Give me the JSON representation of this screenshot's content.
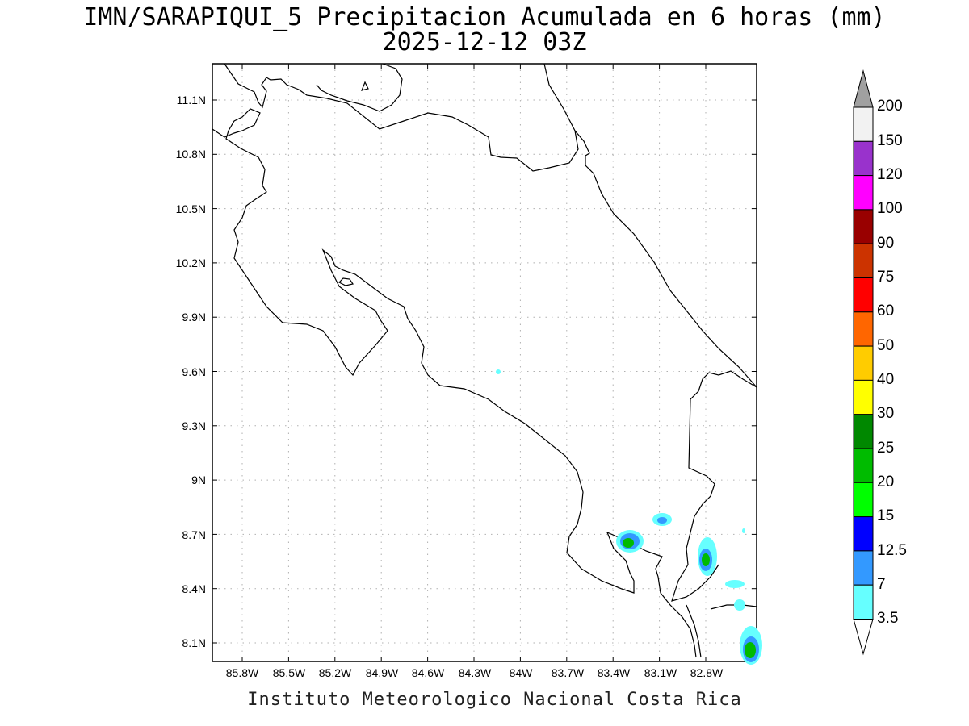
{
  "title": {
    "line1": "IMN/SARAPIQUI_5 Precipitacion Acumulada en 6 horas (mm)",
    "line2": "2025-12-12 03Z"
  },
  "axes": {
    "lon_labels": [
      "85.8W",
      "85.5W",
      "85.2W",
      "84.9W",
      "84.6W",
      "84.3W",
      "84W",
      "83.7W",
      "83.4W",
      "83.1W",
      "82.8W"
    ],
    "lat_labels": [
      "11.1N",
      "10.8N",
      "10.5N",
      "10.2N",
      "9.9N",
      "9.6N",
      "9.3N",
      "9N",
      "8.7N",
      "8.4N",
      "8.1N"
    ]
  },
  "colorbar": {
    "labels": [
      "200",
      "150",
      "120",
      "100",
      "90",
      "75",
      "60",
      "50",
      "40",
      "30",
      "25",
      "20",
      "15",
      "12.5",
      "7",
      "3.5"
    ],
    "colors": [
      "#f2f2f2",
      "#9932cc",
      "#ff00ff",
      "#990000",
      "#cc3300",
      "#ff0000",
      "#ff6600",
      "#ffcc00",
      "#ffff00",
      "#008800",
      "#00bb00",
      "#00ff00",
      "#0000ff",
      "#3399ff",
      "#66ffff"
    ],
    "arrow_top_color": "#a0a0a0",
    "arrow_bottom_color": "#ffffff"
  },
  "footer": "Instituto Meteorologico Nacional Costa Rica"
}
